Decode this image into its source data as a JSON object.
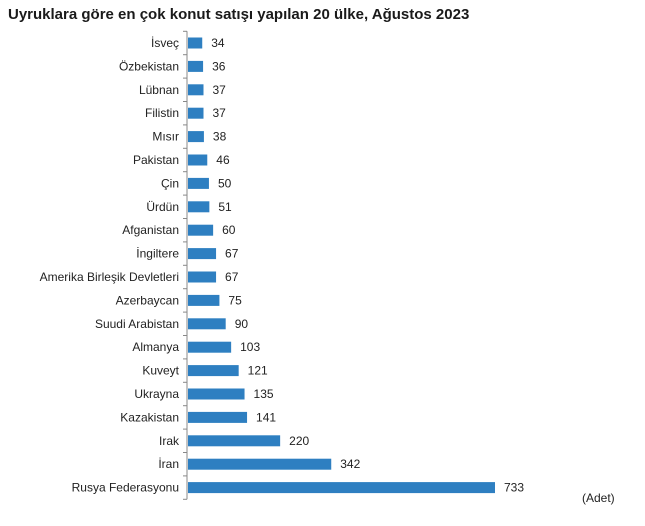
{
  "chart_data": {
    "type": "bar",
    "orientation": "horizontal",
    "title": "Uyruklara göre en çok konut satışı yapılan 20 ülke, Ağustos 2023",
    "unit_label": "(Adet)",
    "categories": [
      "İsveç",
      "Özbekistan",
      "Lübnan",
      "Filistin",
      "Mısır",
      "Pakistan",
      "Çin",
      "Ürdün",
      "Afganistan",
      "İngiltere",
      "Amerika Birleşik Devletleri",
      "Azerbaycan",
      "Suudi Arabistan",
      "Almanya",
      "Kuveyt",
      "Ukrayna",
      "Kazakistan",
      "Irak",
      "İran",
      "Rusya Federasyonu"
    ],
    "values": [
      34,
      36,
      37,
      37,
      38,
      46,
      50,
      51,
      60,
      67,
      67,
      75,
      90,
      103,
      121,
      135,
      141,
      220,
      342,
      733
    ],
    "xlim": [
      0,
      733
    ],
    "grid": false,
    "bar_color": "#2e7fc1",
    "axis_color": "#888888"
  }
}
